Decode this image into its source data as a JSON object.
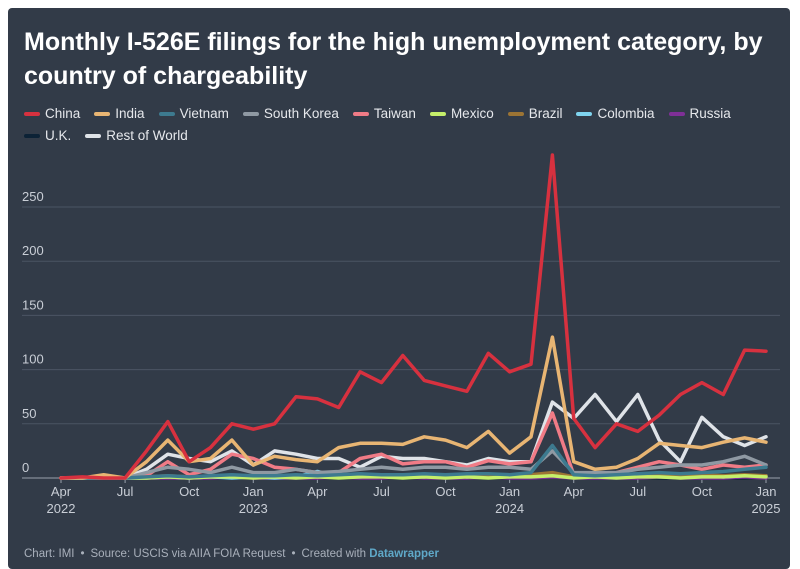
{
  "chart_data": {
    "type": "line",
    "title": "Monthly I-526E filings for the high unemployment category, by country of chargeability",
    "xlabel": "",
    "ylabel": "",
    "ylim": [
      0,
      260
    ],
    "yticks": [
      0,
      50,
      100,
      150,
      200,
      250
    ],
    "xticks": [
      {
        "index": 0,
        "label": "Apr",
        "year": "2022"
      },
      {
        "index": 3,
        "label": "Jul",
        "year": ""
      },
      {
        "index": 6,
        "label": "Oct",
        "year": ""
      },
      {
        "index": 9,
        "label": "Jan",
        "year": "2023"
      },
      {
        "index": 12,
        "label": "Apr",
        "year": ""
      },
      {
        "index": 15,
        "label": "Jul",
        "year": ""
      },
      {
        "index": 18,
        "label": "Oct",
        "year": ""
      },
      {
        "index": 21,
        "label": "Jan",
        "year": "2024"
      },
      {
        "index": 24,
        "label": "Apr",
        "year": ""
      },
      {
        "index": 27,
        "label": "Jul",
        "year": ""
      },
      {
        "index": 30,
        "label": "Oct",
        "year": ""
      },
      {
        "index": 33,
        "label": "Jan",
        "year": "2025"
      }
    ],
    "x": [
      "2022-04",
      "2022-05",
      "2022-06",
      "2022-07",
      "2022-08",
      "2022-09",
      "2022-10",
      "2022-11",
      "2022-12",
      "2023-01",
      "2023-02",
      "2023-03",
      "2023-04",
      "2023-05",
      "2023-06",
      "2023-07",
      "2023-08",
      "2023-09",
      "2023-10",
      "2023-11",
      "2023-12",
      "2024-01",
      "2024-02",
      "2024-03",
      "2024-04",
      "2024-05",
      "2024-06",
      "2024-07",
      "2024-08",
      "2024-09",
      "2024-10",
      "2024-11",
      "2024-12",
      "2025-01"
    ],
    "series": [
      {
        "name": "China",
        "color": "#d7313f",
        "values": [
          0,
          1,
          0,
          0,
          25,
          52,
          15,
          28,
          50,
          45,
          50,
          75,
          73,
          65,
          98,
          88,
          113,
          90,
          85,
          80,
          115,
          98,
          105,
          298,
          55,
          28,
          50,
          43,
          58,
          77,
          88,
          77,
          118,
          117
        ]
      },
      {
        "name": "India",
        "color": "#e8b573",
        "values": [
          0,
          0,
          3,
          0,
          15,
          35,
          15,
          18,
          35,
          12,
          20,
          17,
          15,
          28,
          32,
          32,
          31,
          38,
          35,
          28,
          43,
          23,
          38,
          130,
          15,
          8,
          10,
          18,
          32,
          30,
          28,
          33,
          37,
          33
        ]
      },
      {
        "name": "Vietnam",
        "color": "#3d7a8f",
        "values": [
          0,
          0,
          0,
          0,
          1,
          2,
          1,
          2,
          3,
          2,
          2,
          3,
          2,
          3,
          4,
          3,
          3,
          4,
          3,
          4,
          4,
          3,
          5,
          30,
          3,
          2,
          3,
          4,
          5,
          4,
          5,
          6,
          8,
          10
        ]
      },
      {
        "name": "South Korea",
        "color": "#8f99a3",
        "values": [
          0,
          0,
          0,
          0,
          5,
          10,
          8,
          5,
          10,
          5,
          5,
          8,
          5,
          6,
          8,
          10,
          8,
          10,
          10,
          8,
          10,
          10,
          8,
          25,
          5,
          5,
          5,
          8,
          10,
          12,
          12,
          15,
          20,
          12
        ]
      },
      {
        "name": "Taiwan",
        "color": "#f07b86",
        "values": [
          0,
          0,
          0,
          0,
          2,
          15,
          3,
          8,
          22,
          18,
          10,
          8,
          5,
          5,
          18,
          22,
          13,
          15,
          15,
          10,
          16,
          13,
          15,
          60,
          3,
          3,
          5,
          10,
          15,
          12,
          8,
          12,
          10,
          12
        ]
      },
      {
        "name": "Mexico",
        "color": "#c5ef6a",
        "values": [
          0,
          0,
          0,
          0,
          0,
          1,
          0,
          1,
          1,
          0,
          1,
          0,
          1,
          0,
          1,
          1,
          0,
          1,
          0,
          1,
          0,
          1,
          1,
          2,
          0,
          1,
          0,
          1,
          1,
          0,
          1,
          1,
          2,
          1
        ]
      },
      {
        "name": "Brazil",
        "color": "#9c7434",
        "values": [
          0,
          0,
          0,
          0,
          1,
          2,
          1,
          1,
          2,
          1,
          2,
          2,
          1,
          2,
          2,
          1,
          2,
          2,
          1,
          2,
          2,
          2,
          3,
          5,
          1,
          1,
          2,
          2,
          2,
          2,
          3,
          2,
          3,
          2
        ]
      },
      {
        "name": "Colombia",
        "color": "#7fd4ef",
        "values": [
          0,
          0,
          0,
          0,
          0,
          1,
          0,
          1,
          0,
          1,
          0,
          1,
          6,
          1,
          1,
          2,
          1,
          1,
          3,
          1,
          2,
          1,
          2,
          4,
          1,
          1,
          1,
          2,
          1,
          1,
          2,
          1,
          2,
          2
        ]
      },
      {
        "name": "Russia",
        "color": "#7f2f97",
        "values": [
          0,
          0,
          0,
          0,
          0,
          0,
          0,
          0,
          1,
          0,
          0,
          0,
          0,
          1,
          0,
          0,
          1,
          0,
          0,
          0,
          1,
          0,
          0,
          1,
          0,
          0,
          0,
          0,
          1,
          0,
          0,
          0,
          1,
          0
        ]
      },
      {
        "name": "U.K.",
        "color": "#0c2236",
        "values": [
          0,
          0,
          0,
          0,
          0,
          1,
          0,
          0,
          0,
          1,
          0,
          0,
          0,
          0,
          1,
          0,
          0,
          0,
          0,
          1,
          0,
          0,
          0,
          1,
          0,
          0,
          0,
          1,
          0,
          0,
          0,
          0,
          0,
          1
        ]
      },
      {
        "name": "Rest of World",
        "color": "#dfe3e8",
        "values": [
          0,
          0,
          0,
          0,
          8,
          22,
          18,
          15,
          25,
          12,
          25,
          22,
          18,
          18,
          10,
          20,
          18,
          18,
          15,
          12,
          18,
          15,
          15,
          70,
          55,
          77,
          52,
          77,
          35,
          15,
          56,
          38,
          30,
          38
        ]
      }
    ]
  },
  "footer": {
    "chart_by": "Chart: IMI",
    "source": "Source: USCIS via AIIA FOIA Request",
    "created_with": "Created with",
    "tool": "Datawrapper",
    "separator": "•"
  }
}
